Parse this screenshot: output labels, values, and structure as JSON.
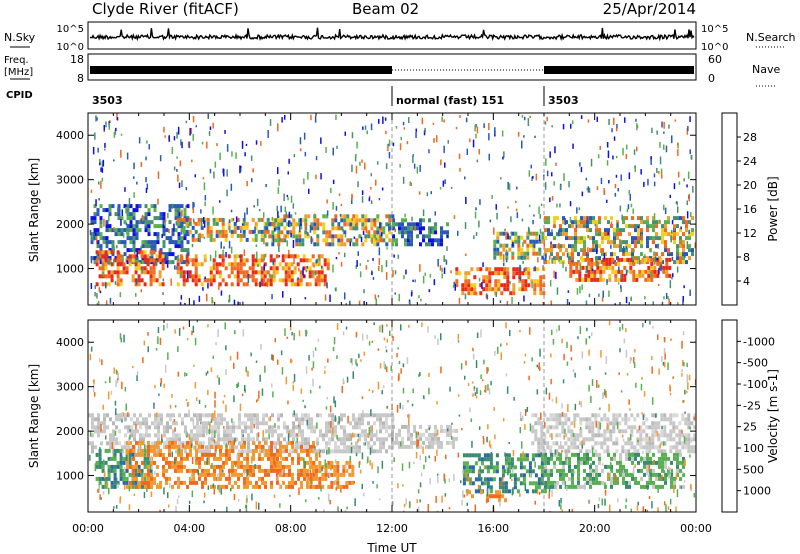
{
  "header": {
    "station": "Clyde River (fitACF)",
    "beam": "Beam 02",
    "date": "25/Apr/2014"
  },
  "nsky_panel": {
    "left_label": "N.Sky",
    "left_ticks": [
      "10^5",
      "10^0"
    ],
    "right_ticks": [
      "10^5",
      "10^0"
    ],
    "right_label": "N.Search"
  },
  "freq_panel": {
    "left_label_top": "Freq.",
    "left_label_bottom": "[MHz]",
    "left_ticks": [
      "18",
      "8"
    ],
    "right_ticks": [
      "60",
      "0"
    ],
    "right_label": "Nave"
  },
  "cpid_row": {
    "label": "CPID",
    "segments": [
      {
        "start_hour": 0,
        "text": "3503"
      },
      {
        "start_hour": 12,
        "text": "normal (fast) 151"
      },
      {
        "start_hour": 18,
        "text": "3503"
      }
    ]
  },
  "chart_data": [
    {
      "type": "heatmap",
      "quantity": "Power",
      "ylabel": "Slant Range [km]",
      "ylim": [
        180,
        4500
      ],
      "yticks": [
        1000,
        2000,
        3000,
        4000
      ],
      "xlim": [
        0,
        24
      ],
      "colorbar": {
        "label": "Power [dB]",
        "tick_labels": [
          "4",
          "8",
          "12",
          "16",
          "20",
          "24",
          "28"
        ],
        "colors": [
          "#1010e0",
          "#2a5ab8",
          "#4a9070",
          "#58b050",
          "#f0d020",
          "#f0a030",
          "#f06a20",
          "#e82818"
        ]
      },
      "echo_regions": [
        {
          "t0": 0.1,
          "t1": 4,
          "r0": 1100,
          "r1": 2400,
          "level": "low"
        },
        {
          "t0": 0.3,
          "t1": 3,
          "r0": 600,
          "r1": 1400,
          "level": "high"
        },
        {
          "t0": 3.5,
          "t1": 7.5,
          "r0": 1600,
          "r1": 2100,
          "level": "mid"
        },
        {
          "t0": 3.5,
          "t1": 9.5,
          "r0": 600,
          "r1": 1300,
          "level": "high"
        },
        {
          "t0": 7,
          "t1": 12,
          "r0": 1500,
          "r1": 2200,
          "level": "mid"
        },
        {
          "t0": 12,
          "t1": 14.2,
          "r0": 1500,
          "r1": 2100,
          "level": "low"
        },
        {
          "t0": 14.5,
          "t1": 18,
          "r0": 400,
          "r1": 1000,
          "level": "high"
        },
        {
          "t0": 16,
          "t1": 18,
          "r0": 1200,
          "r1": 1800,
          "level": "mid"
        },
        {
          "t0": 18,
          "t1": 23.9,
          "r0": 1100,
          "r1": 2100,
          "level": "mid"
        },
        {
          "t0": 19,
          "t1": 23,
          "r0": 700,
          "r1": 1200,
          "level": "high"
        }
      ]
    },
    {
      "type": "heatmap",
      "quantity": "Velocity",
      "ylabel": "Slant Range [km]",
      "ylim": [
        180,
        4500
      ],
      "yticks": [
        1000,
        2000,
        3000,
        4000
      ],
      "xlim": [
        0,
        24
      ],
      "xlabel": "Time UT",
      "xtick_labels": [
        "00:00",
        "04:00",
        "08:00",
        "12:00",
        "16:00",
        "20:00",
        "00:00"
      ],
      "colorbar": {
        "label": "Velocity [m s-1]",
        "tick_labels": [
          "1000",
          "500",
          "100",
          "25",
          "-25",
          "-100",
          "-500",
          "-1000"
        ],
        "colors": [
          "#1030c0",
          "#2a6aa0",
          "#3a8a70",
          "#58b050",
          "#c8c8c8",
          "#f09a30",
          "#f06a20",
          "#e82818",
          "#e01010"
        ]
      },
      "echo_regions": [
        {
          "t0": 0,
          "t1": 12,
          "r0": 1500,
          "r1": 2400,
          "level": "ground"
        },
        {
          "t0": 12,
          "t1": 14.5,
          "r0": 1600,
          "r1": 2100,
          "level": "ground"
        },
        {
          "t0": 17.5,
          "t1": 24,
          "r0": 1500,
          "r1": 2400,
          "level": "ground"
        },
        {
          "t0": 0.3,
          "t1": 2.5,
          "r0": 700,
          "r1": 1600,
          "level": "toward"
        },
        {
          "t0": 1.5,
          "t1": 9,
          "r0": 700,
          "r1": 1700,
          "level": "away"
        },
        {
          "t0": 8.5,
          "t1": 10.5,
          "r0": 700,
          "r1": 1300,
          "level": "away"
        },
        {
          "t0": 14.8,
          "t1": 18,
          "r0": 600,
          "r1": 1500,
          "level": "toward"
        },
        {
          "t0": 18,
          "t1": 23.5,
          "r0": 700,
          "r1": 1500,
          "level": "toward_weak"
        },
        {
          "t0": 15,
          "t1": 16.5,
          "r0": 400,
          "r1": 650,
          "level": "away"
        }
      ]
    }
  ]
}
